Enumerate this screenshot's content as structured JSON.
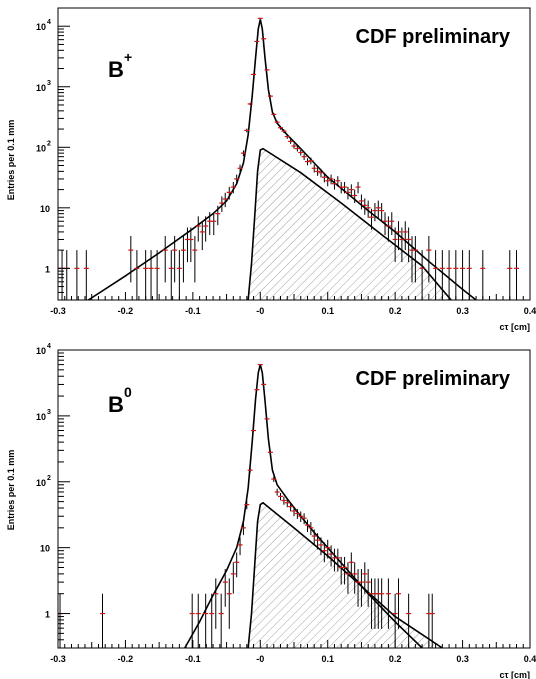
{
  "chart_data": [
    {
      "type": "scatter",
      "panel_label": "B",
      "panel_label_sup": "+",
      "annotation": "CDF preliminary",
      "xlabel": "cτ [cm]",
      "ylabel": "Entries per 0.1 mm",
      "yscale": "log",
      "xlim": [
        -0.3,
        0.4
      ],
      "ylim": [
        0.3,
        20000
      ],
      "x_ticks": [
        "-0.3",
        "-0.2",
        "-0.1",
        "-0",
        "0.1",
        "0.2",
        "0.3",
        "0.4"
      ],
      "y_ticks": [
        {
          "base": "1",
          "exp": ""
        },
        {
          "base": "10",
          "exp": ""
        },
        {
          "base": "10",
          "exp": "2"
        },
        {
          "base": "10",
          "exp": "3"
        },
        {
          "base": "10",
          "exp": "4"
        }
      ],
      "series": [
        {
          "values": [
            [
              -0.3,
              1
            ],
            [
              -0.294,
              1
            ],
            [
              -0.287,
              1
            ],
            [
              -0.272,
              1
            ],
            [
              -0.258,
              1
            ],
            [
              -0.192,
              2
            ],
            [
              -0.183,
              1
            ],
            [
              -0.17,
              1
            ],
            [
              -0.162,
              1
            ],
            [
              -0.153,
              1
            ],
            [
              -0.141,
              2
            ],
            [
              -0.132,
              1
            ],
            [
              -0.127,
              2
            ],
            [
              -0.12,
              1
            ],
            [
              -0.114,
              2
            ],
            [
              -0.108,
              3
            ],
            [
              -0.103,
              3
            ],
            [
              -0.097,
              2
            ],
            [
              -0.092,
              5
            ],
            [
              -0.086,
              4
            ],
            [
              -0.081,
              5
            ],
            [
              -0.075,
              6
            ],
            [
              -0.069,
              6
            ],
            [
              -0.063,
              8
            ],
            [
              -0.057,
              12
            ],
            [
              -0.052,
              14
            ],
            [
              -0.046,
              18
            ],
            [
              -0.04,
              22
            ],
            [
              -0.035,
              30
            ],
            [
              -0.03,
              45
            ],
            [
              -0.025,
              80
            ],
            [
              -0.02,
              190
            ],
            [
              -0.015,
              520
            ],
            [
              -0.01,
              1600
            ],
            [
              -0.005,
              5600
            ],
            [
              0.0,
              13500
            ],
            [
              0.005,
              6200
            ],
            [
              0.01,
              1900
            ],
            [
              0.015,
              700
            ],
            [
              0.02,
              350
            ],
            [
              0.025,
              260
            ],
            [
              0.03,
              210
            ],
            [
              0.035,
              185
            ],
            [
              0.04,
              150
            ],
            [
              0.045,
              125
            ],
            [
              0.05,
              105
            ],
            [
              0.055,
              95
            ],
            [
              0.06,
              82
            ],
            [
              0.065,
              70
            ],
            [
              0.07,
              58
            ],
            [
              0.075,
              60
            ],
            [
              0.08,
              45
            ],
            [
              0.085,
              40
            ],
            [
              0.09,
              38
            ],
            [
              0.095,
              32
            ],
            [
              0.1,
              28
            ],
            [
              0.105,
              30
            ],
            [
              0.11,
              25
            ],
            [
              0.115,
              28
            ],
            [
              0.12,
              22
            ],
            [
              0.125,
              22
            ],
            [
              0.13,
              18
            ],
            [
              0.135,
              20
            ],
            [
              0.14,
              16
            ],
            [
              0.145,
              22
            ],
            [
              0.15,
              13
            ],
            [
              0.155,
              11
            ],
            [
              0.16,
              10
            ],
            [
              0.165,
              7
            ],
            [
              0.17,
              9
            ],
            [
              0.175,
              10
            ],
            [
              0.18,
              9
            ],
            [
              0.185,
              6
            ],
            [
              0.19,
              5
            ],
            [
              0.195,
              6
            ],
            [
              0.2,
              3
            ],
            [
              0.205,
              4
            ],
            [
              0.21,
              3
            ],
            [
              0.215,
              4
            ],
            [
              0.22,
              3
            ],
            [
              0.225,
              2
            ],
            [
              0.23,
              2
            ],
            [
              0.24,
              1
            ],
            [
              0.25,
              2
            ],
            [
              0.26,
              1
            ],
            [
              0.27,
              1
            ],
            [
              0.28,
              1
            ],
            [
              0.29,
              1
            ],
            [
              0.3,
              1
            ],
            [
              0.31,
              1
            ],
            [
              0.33,
              1
            ],
            [
              0.37,
              1
            ],
            [
              0.38,
              1
            ]
          ]
        }
      ],
      "fit_curve": [
        [
          -0.255,
          0.3
        ],
        [
          -0.2,
          0.75
        ],
        [
          -0.15,
          1.8
        ],
        [
          -0.1,
          4.5
        ],
        [
          -0.07,
          8
        ],
        [
          -0.05,
          13
        ],
        [
          -0.035,
          25
        ],
        [
          -0.025,
          55
        ],
        [
          -0.018,
          160
        ],
        [
          -0.012,
          700
        ],
        [
          -0.007,
          3000
        ],
        [
          -0.003,
          9000
        ],
        [
          0.0,
          13000
        ],
        [
          0.003,
          9000
        ],
        [
          0.007,
          3000
        ],
        [
          0.012,
          900
        ],
        [
          0.018,
          380
        ],
        [
          0.025,
          250
        ],
        [
          0.04,
          160
        ],
        [
          0.06,
          95
        ],
        [
          0.08,
          55
        ],
        [
          0.1,
          32
        ],
        [
          0.13,
          17
        ],
        [
          0.16,
          9
        ],
        [
          0.2,
          4
        ],
        [
          0.25,
          1.3
        ],
        [
          0.3,
          0.45
        ],
        [
          0.32,
          0.3
        ]
      ],
      "background_curve": [
        [
          -0.018,
          0.3
        ],
        [
          -0.013,
          1.2
        ],
        [
          -0.008,
          8
        ],
        [
          -0.004,
          40
        ],
        [
          0.0,
          90
        ],
        [
          0.004,
          95
        ],
        [
          0.06,
          38
        ],
        [
          0.12,
          12
        ],
        [
          0.18,
          3.6
        ],
        [
          0.24,
          1.1
        ],
        [
          0.283,
          0.3
        ]
      ],
      "colors": {
        "points": "#d11414",
        "error_bars": "#000000",
        "curves": "#000000",
        "hatch": "#888888"
      }
    },
    {
      "type": "scatter",
      "panel_label": "B",
      "panel_label_sup": "0",
      "annotation": "CDF preliminary",
      "xlabel": "cτ [cm]",
      "ylabel": "Entries per 0.1 mm",
      "yscale": "log",
      "xlim": [
        -0.3,
        0.4
      ],
      "ylim": [
        0.3,
        10000
      ],
      "x_ticks": [
        "-0.3",
        "-0.2",
        "-0.1",
        "-0",
        "0.1",
        "0.2",
        "0.3",
        "0.4"
      ],
      "y_ticks": [
        {
          "base": "1",
          "exp": ""
        },
        {
          "base": "10",
          "exp": ""
        },
        {
          "base": "10",
          "exp": "2"
        },
        {
          "base": "10",
          "exp": "3"
        },
        {
          "base": "10",
          "exp": "4"
        }
      ],
      "series": [
        {
          "values": [
            [
              -0.297,
              1
            ],
            [
              -0.234,
              1
            ],
            [
              -0.101,
              1
            ],
            [
              -0.092,
              1
            ],
            [
              -0.081,
              1
            ],
            [
              -0.072,
              1
            ],
            [
              -0.066,
              2
            ],
            [
              -0.058,
              1
            ],
            [
              -0.052,
              3
            ],
            [
              -0.046,
              2
            ],
            [
              -0.04,
              4
            ],
            [
              -0.035,
              6
            ],
            [
              -0.03,
              11
            ],
            [
              -0.025,
              20
            ],
            [
              -0.02,
              45
            ],
            [
              -0.015,
              150
            ],
            [
              -0.01,
              600
            ],
            [
              -0.005,
              2500
            ],
            [
              0.0,
              6000
            ],
            [
              0.005,
              3000
            ],
            [
              0.01,
              900
            ],
            [
              0.015,
              280
            ],
            [
              0.02,
              110
            ],
            [
              0.025,
              70
            ],
            [
              0.03,
              60
            ],
            [
              0.035,
              52
            ],
            [
              0.04,
              48
            ],
            [
              0.045,
              42
            ],
            [
              0.05,
              36
            ],
            [
              0.055,
              33
            ],
            [
              0.06,
              30
            ],
            [
              0.065,
              28
            ],
            [
              0.07,
              22
            ],
            [
              0.075,
              20
            ],
            [
              0.08,
              15
            ],
            [
              0.085,
              13
            ],
            [
              0.09,
              11
            ],
            [
              0.095,
              9
            ],
            [
              0.1,
              10
            ],
            [
              0.105,
              8
            ],
            [
              0.11,
              7
            ],
            [
              0.115,
              7
            ],
            [
              0.12,
              5
            ],
            [
              0.125,
              5
            ],
            [
              0.13,
              4
            ],
            [
              0.135,
              6
            ],
            [
              0.14,
              4
            ],
            [
              0.145,
              3
            ],
            [
              0.15,
              3
            ],
            [
              0.155,
              4
            ],
            [
              0.16,
              3
            ],
            [
              0.165,
              2
            ],
            [
              0.17,
              2
            ],
            [
              0.175,
              2
            ],
            [
              0.18,
              2
            ],
            [
              0.19,
              2
            ],
            [
              0.2,
              1
            ],
            [
              0.205,
              2
            ],
            [
              0.22,
              1
            ],
            [
              0.25,
              1
            ],
            [
              0.255,
              1
            ]
          ]
        }
      ],
      "fit_curve": [
        [
          -0.112,
          0.3
        ],
        [
          -0.09,
          0.75
        ],
        [
          -0.07,
          1.9
        ],
        [
          -0.05,
          4.5
        ],
        [
          -0.035,
          10
        ],
        [
          -0.025,
          25
        ],
        [
          -0.018,
          80
        ],
        [
          -0.012,
          400
        ],
        [
          -0.007,
          1800
        ],
        [
          -0.003,
          4500
        ],
        [
          0.0,
          6000
        ],
        [
          0.003,
          4500
        ],
        [
          0.007,
          1700
        ],
        [
          0.012,
          450
        ],
        [
          0.018,
          150
        ],
        [
          0.025,
          90
        ],
        [
          0.04,
          55
        ],
        [
          0.06,
          30
        ],
        [
          0.08,
          17
        ],
        [
          0.1,
          10
        ],
        [
          0.13,
          4.5
        ],
        [
          0.16,
          2
        ],
        [
          0.2,
          0.75
        ],
        [
          0.24,
          0.3
        ]
      ],
      "background_curve": [
        [
          -0.018,
          0.3
        ],
        [
          -0.013,
          1.0
        ],
        [
          -0.008,
          6
        ],
        [
          -0.004,
          25
        ],
        [
          0.0,
          45
        ],
        [
          0.004,
          48
        ],
        [
          0.05,
          20
        ],
        [
          0.1,
          7.5
        ],
        [
          0.15,
          2.6
        ],
        [
          0.2,
          0.9
        ],
        [
          0.27,
          0.3
        ]
      ],
      "colors": {
        "points": "#d11414",
        "error_bars": "#000000",
        "curves": "#000000",
        "hatch": "#888888"
      }
    }
  ]
}
